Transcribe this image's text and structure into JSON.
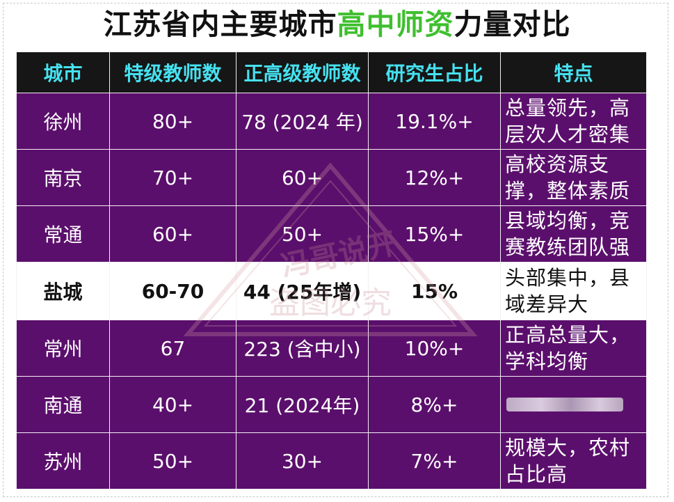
{
  "title": {
    "part1": "江苏省内主要城市",
    "highlight": "高中师资",
    "part2": "力量对比"
  },
  "headers": [
    "城市",
    "特级教师数",
    "正高级教师数",
    "研究生占比",
    "特点"
  ],
  "rows": [
    {
      "city": "徐州",
      "special": "80+",
      "senior": "78 (2024 年)",
      "grad": "19.1%+",
      "feature": "总量领先，高层次人才密集"
    },
    {
      "city": "南京",
      "special": "70+",
      "senior": "60+",
      "grad": "12%+",
      "feature": "高校资源支撑，整体素质"
    },
    {
      "city": "常通",
      "special": "60+",
      "senior": "50+",
      "grad": "15%+",
      "feature": "县域均衡，竞赛教练团队强"
    },
    {
      "city": "盐城",
      "special": "60-70",
      "senior": "44 (25年增)",
      "grad": "15%",
      "feature": "头部集中，县域差异大"
    },
    {
      "city": "常州",
      "special": "67",
      "senior": "223 (含中小)",
      "grad": "10%+",
      "feature": "正高总量大，学科均衡"
    },
    {
      "city": "南通",
      "special": "40+",
      "senior": "21 (2024年)",
      "grad": "8%+",
      "feature": ""
    },
    {
      "city": "苏州",
      "special": "50+",
      "senior": "30+",
      "grad": "7%+",
      "feature": "规模大，农村占比高"
    }
  ],
  "watermark": {
    "line1": "冯哥说开",
    "line2": "盗图必究"
  },
  "colors": {
    "header_bg": "#161616",
    "header_text": "#46e1f0",
    "row_bg": "#5b0f6c",
    "highlight_row": "#ffffff",
    "title_highlight": "#3fbf2f"
  }
}
